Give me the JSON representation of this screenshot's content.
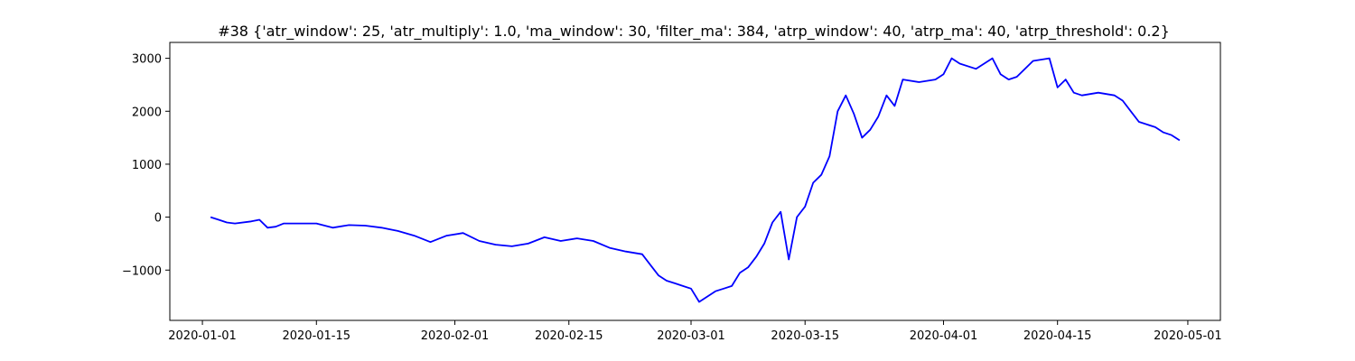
{
  "chart_data": {
    "type": "line",
    "title": "#38 {'atr_window': 25, 'atr_multiply': 1.0, 'ma_window': 30, 'filter_ma': 384, 'atrp_window': 40, 'atrp_ma': 40, 'atrp_threshold': 0.2}",
    "xlabel": "",
    "ylabel": "",
    "x_ticks": [
      "2020-01-01",
      "2020-01-15",
      "2020-02-01",
      "2020-02-15",
      "2020-03-01",
      "2020-03-15",
      "2020-04-01",
      "2020-04-15",
      "2020-05-01"
    ],
    "y_ticks": [
      -1000,
      0,
      1000,
      2000,
      3000
    ],
    "xlim": [
      "2019-12-28",
      "2020-05-05"
    ],
    "ylim": [
      -1950,
      3300
    ],
    "grid": false,
    "line_color": "#0000ff",
    "series": [
      {
        "x": [
          "2020-01-02",
          "2020-01-03",
          "2020-01-04",
          "2020-01-05",
          "2020-01-07",
          "2020-01-08",
          "2020-01-09",
          "2020-01-10",
          "2020-01-11",
          "2020-01-13",
          "2020-01-15",
          "2020-01-17",
          "2020-01-19",
          "2020-01-21",
          "2020-01-23",
          "2020-01-25",
          "2020-01-27",
          "2020-01-29",
          "2020-01-31",
          "2020-02-02",
          "2020-02-04",
          "2020-02-06",
          "2020-02-08",
          "2020-02-10",
          "2020-02-12",
          "2020-02-14",
          "2020-02-16",
          "2020-02-18",
          "2020-02-20",
          "2020-02-22",
          "2020-02-24",
          "2020-02-25",
          "2020-02-26",
          "2020-02-27",
          "2020-02-28",
          "2020-02-29",
          "2020-03-01",
          "2020-03-02",
          "2020-03-03",
          "2020-03-04",
          "2020-03-05",
          "2020-03-06",
          "2020-03-07",
          "2020-03-08",
          "2020-03-09",
          "2020-03-10",
          "2020-03-11",
          "2020-03-12",
          "2020-03-13",
          "2020-03-14",
          "2020-03-15",
          "2020-03-16",
          "2020-03-17",
          "2020-03-18",
          "2020-03-19",
          "2020-03-20",
          "2020-03-21",
          "2020-03-22",
          "2020-03-23",
          "2020-03-24",
          "2020-03-25",
          "2020-03-26",
          "2020-03-27",
          "2020-03-29",
          "2020-03-31",
          "2020-04-01",
          "2020-04-02",
          "2020-04-03",
          "2020-04-05",
          "2020-04-07",
          "2020-04-08",
          "2020-04-09",
          "2020-04-10",
          "2020-04-12",
          "2020-04-14",
          "2020-04-15",
          "2020-04-16",
          "2020-04-17",
          "2020-04-18",
          "2020-04-20",
          "2020-04-22",
          "2020-04-23",
          "2020-04-24",
          "2020-04-25",
          "2020-04-27",
          "2020-04-28",
          "2020-04-29",
          "2020-04-30"
        ],
        "values": [
          0,
          -50,
          -100,
          -120,
          -80,
          -50,
          -200,
          -180,
          -120,
          -120,
          -120,
          -200,
          -150,
          -160,
          -200,
          -260,
          -350,
          -470,
          -350,
          -300,
          -450,
          -520,
          -550,
          -500,
          -380,
          -450,
          -400,
          -450,
          -580,
          -650,
          -700,
          -900,
          -1100,
          -1200,
          -1250,
          -1300,
          -1350,
          -1600,
          -1500,
          -1400,
          -1350,
          -1300,
          -1050,
          -950,
          -750,
          -500,
          -100,
          100,
          -800,
          0,
          200,
          650,
          800,
          1150,
          2000,
          2300,
          1950,
          1500,
          1650,
          1900,
          2300,
          2100,
          2600,
          2550,
          2600,
          2700,
          3000,
          2900,
          2800,
          3000,
          2700,
          2600,
          2650,
          2950,
          3000,
          2450,
          2600,
          2350,
          2300,
          2350,
          2300,
          2200,
          2000,
          1800,
          1700,
          1600,
          1550,
          1450
        ]
      }
    ]
  }
}
